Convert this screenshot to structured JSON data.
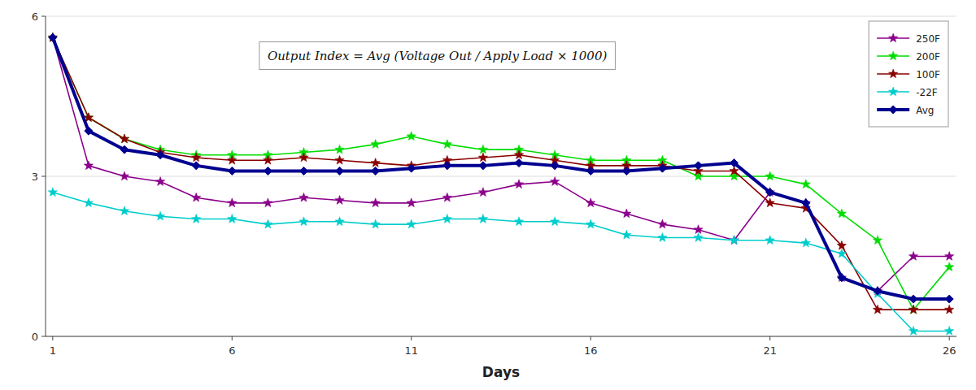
{
  "chart_data": {
    "type": "line",
    "x_label": "Days",
    "annotations": [
      "Output Index = Avg (Voltage Out / Apply Load × 1000)"
    ],
    "x": [
      1,
      2,
      3,
      4,
      5,
      6,
      7,
      8,
      9,
      10,
      11,
      12,
      13,
      14,
      15,
      16,
      17,
      18,
      19,
      20,
      21,
      22,
      23,
      24,
      25,
      26
    ],
    "series": [
      {
        "name": "250F",
        "color": "#8B008B",
        "marker": "star",
        "values": [
          5.6,
          3.2,
          3.0,
          2.9,
          2.6,
          2.5,
          2.5,
          2.6,
          2.55,
          2.5,
          2.5,
          2.6,
          2.7,
          2.85,
          2.9,
          2.5,
          2.3,
          2.1,
          2.0,
          1.8,
          2.7,
          2.5,
          1.1,
          0.85,
          1.5,
          1.5
        ]
      },
      {
        "name": "200F",
        "color": "#00DD00",
        "marker": "star",
        "values": [
          5.6,
          4.1,
          3.7,
          3.5,
          3.4,
          3.4,
          3.4,
          3.45,
          3.5,
          3.6,
          3.75,
          3.6,
          3.5,
          3.5,
          3.4,
          3.3,
          3.3,
          3.3,
          3.0,
          3.0,
          3.0,
          2.85,
          2.3,
          1.8,
          0.5,
          1.3
        ]
      },
      {
        "name": "100F",
        "color": "#8B0000",
        "marker": "star",
        "values": [
          5.6,
          4.1,
          3.7,
          3.45,
          3.35,
          3.3,
          3.3,
          3.35,
          3.3,
          3.25,
          3.2,
          3.3,
          3.35,
          3.4,
          3.3,
          3.2,
          3.2,
          3.2,
          3.1,
          3.1,
          2.5,
          2.4,
          1.7,
          0.5,
          0.5,
          0.5
        ]
      },
      {
        "name": "-22F",
        "color": "#00CCCC",
        "marker": "star",
        "values": [
          2.7,
          2.5,
          2.35,
          2.25,
          2.2,
          2.2,
          2.1,
          2.15,
          2.15,
          2.1,
          2.1,
          2.2,
          2.2,
          2.15,
          2.15,
          2.1,
          1.9,
          1.85,
          1.85,
          1.8,
          1.8,
          1.75,
          1.55,
          0.8,
          0.1,
          0.1
        ]
      },
      {
        "name": "Avg",
        "color": "#000090",
        "marker": "diamond",
        "values": [
          5.6,
          3.85,
          3.5,
          3.4,
          3.2,
          3.1,
          3.1,
          3.1,
          3.1,
          3.1,
          3.15,
          3.2,
          3.2,
          3.25,
          3.2,
          3.1,
          3.1,
          3.15,
          3.2,
          3.25,
          2.7,
          2.5,
          1.1,
          0.85,
          0.7,
          0.7
        ]
      }
    ],
    "xlim": [
      0.8,
      26.2
    ],
    "xticks": [
      1,
      6,
      11,
      16,
      21,
      26
    ],
    "ylim": [
      0,
      6
    ],
    "yticks": [
      0,
      3,
      6
    ],
    "grid": true,
    "legend": "upper right"
  }
}
